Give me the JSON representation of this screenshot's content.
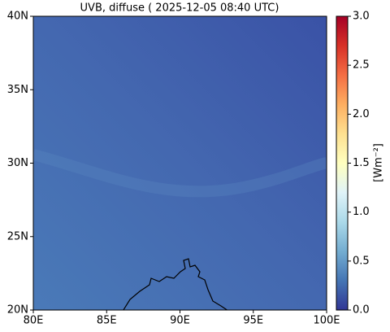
{
  "chart_data": {
    "type": "map",
    "title": "UVB, diffuse ( 2025-12-05 08:40 UTC)",
    "xlim": [
      80,
      100
    ],
    "ylim": [
      20,
      40
    ],
    "xticks": [
      {
        "value": 80,
        "label": "80E"
      },
      {
        "value": 85,
        "label": "85E"
      },
      {
        "value": 90,
        "label": "90E"
      },
      {
        "value": 95,
        "label": "95E"
      },
      {
        "value": 100,
        "label": "100E"
      }
    ],
    "yticks": [
      {
        "value": 20,
        "label": "20N"
      },
      {
        "value": 25,
        "label": "25N"
      },
      {
        "value": 30,
        "label": "30N"
      },
      {
        "value": 35,
        "label": "35N"
      },
      {
        "value": 40,
        "label": "40N"
      }
    ],
    "colorbar": {
      "label": "[Wm⁻²]",
      "lim": [
        0,
        3
      ],
      "ticks": [
        {
          "value": 0,
          "label": "0.0"
        },
        {
          "value": 0.5,
          "label": "0.5"
        },
        {
          "value": 1,
          "label": "1.0"
        },
        {
          "value": 1.5,
          "label": "1.5"
        },
        {
          "value": 2,
          "label": "2.0"
        },
        {
          "value": 2.5,
          "label": "2.5"
        },
        {
          "value": 3,
          "label": "3.0"
        }
      ]
    }
  }
}
